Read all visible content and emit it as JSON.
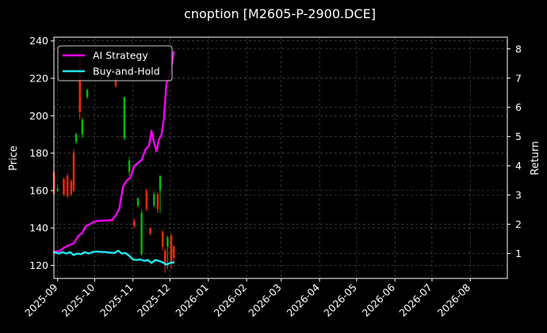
{
  "chart_data": {
    "type": "line",
    "title": "cnoption [M2605-P-2900.DCE]",
    "ylabel_left": "Price",
    "ylabel_right": "Return",
    "xlabel": "",
    "grid": true,
    "legend_placement": "top-left",
    "colors": {
      "background": "#000000",
      "up_candle": "#00c000",
      "down_candle": "#ff2a00",
      "ai_strategy": "#ff00ff",
      "buy_and_hold": "#22e5f0",
      "grid": "#555555",
      "axis": "#ffffff"
    },
    "x_range": [
      "2025-08-29",
      "2026-08-31"
    ],
    "x_ticks": [
      "2025-09",
      "2025-10",
      "2025-11",
      "2025-12",
      "2026-01",
      "2026-02",
      "2026-03",
      "2026-04",
      "2026-05",
      "2026-06",
      "2026-07",
      "2026-08"
    ],
    "x_tick_dates": [
      "2025-09-01",
      "2025-10-01",
      "2025-11-01",
      "2025-12-01",
      "2026-01-01",
      "2026-02-01",
      "2026-03-01",
      "2026-04-01",
      "2026-05-01",
      "2026-06-01",
      "2026-07-01",
      "2026-08-01"
    ],
    "ylim_left": [
      113,
      242
    ],
    "yticks_left": [
      120,
      140,
      160,
      180,
      200,
      220,
      240
    ],
    "ylim_right": [
      0.15,
      8.4
    ],
    "yticks_right": [
      1,
      2,
      3,
      4,
      5,
      6,
      7,
      8
    ],
    "series": [
      {
        "name": "AI Strategy",
        "axis": "right",
        "points": [
          [
            "2025-08-29",
            1.05
          ],
          [
            "2025-09-03",
            1.1
          ],
          [
            "2025-09-06",
            1.2
          ],
          [
            "2025-09-10",
            1.28
          ],
          [
            "2025-09-14",
            1.35
          ],
          [
            "2025-09-18",
            1.62
          ],
          [
            "2025-09-21",
            1.7
          ],
          [
            "2025-09-24",
            1.95
          ],
          [
            "2025-09-27",
            2.0
          ],
          [
            "2025-09-30",
            2.08
          ],
          [
            "2025-10-04",
            2.12
          ],
          [
            "2025-10-08",
            2.13
          ],
          [
            "2025-10-12",
            2.13
          ],
          [
            "2025-10-15",
            2.15
          ],
          [
            "2025-10-18",
            2.3
          ],
          [
            "2025-10-21",
            2.55
          ],
          [
            "2025-10-24",
            3.3
          ],
          [
            "2025-10-27",
            3.5
          ],
          [
            "2025-10-30",
            3.6
          ],
          [
            "2025-11-02",
            4.0
          ],
          [
            "2025-11-05",
            4.1
          ],
          [
            "2025-11-08",
            4.2
          ],
          [
            "2025-11-11",
            4.55
          ],
          [
            "2025-11-14",
            4.7
          ],
          [
            "2025-11-16",
            5.2
          ],
          [
            "2025-11-18",
            4.8
          ],
          [
            "2025-11-20",
            4.5
          ],
          [
            "2025-11-22",
            4.9
          ],
          [
            "2025-11-24",
            5.05
          ],
          [
            "2025-11-26",
            5.6
          ],
          [
            "2025-11-28",
            6.8
          ],
          [
            "2025-11-30",
            7.0
          ],
          [
            "2025-12-02",
            7.35
          ],
          [
            "2025-12-04",
            7.9
          ]
        ]
      },
      {
        "name": "Buy-and-Hold",
        "axis": "right",
        "points": [
          [
            "2025-08-29",
            1.05
          ],
          [
            "2025-09-02",
            1.0
          ],
          [
            "2025-09-05",
            1.05
          ],
          [
            "2025-09-08",
            1.0
          ],
          [
            "2025-09-11",
            1.05
          ],
          [
            "2025-09-14",
            0.95
          ],
          [
            "2025-09-17",
            1.0
          ],
          [
            "2025-09-20",
            0.98
          ],
          [
            "2025-09-23",
            1.05
          ],
          [
            "2025-09-26",
            1.0
          ],
          [
            "2025-09-29",
            1.05
          ],
          [
            "2025-10-02",
            1.07
          ],
          [
            "2025-10-06",
            1.06
          ],
          [
            "2025-10-10",
            1.05
          ],
          [
            "2025-10-14",
            1.03
          ],
          [
            "2025-10-17",
            1.02
          ],
          [
            "2025-10-20",
            1.1
          ],
          [
            "2025-10-23",
            1.0
          ],
          [
            "2025-10-26",
            1.02
          ],
          [
            "2025-10-29",
            0.92
          ],
          [
            "2025-11-01",
            0.8
          ],
          [
            "2025-11-04",
            0.78
          ],
          [
            "2025-11-07",
            0.8
          ],
          [
            "2025-11-10",
            0.75
          ],
          [
            "2025-11-13",
            0.78
          ],
          [
            "2025-11-16",
            0.68
          ],
          [
            "2025-11-19",
            0.78
          ],
          [
            "2025-11-22",
            0.75
          ],
          [
            "2025-11-25",
            0.7
          ],
          [
            "2025-11-28",
            0.62
          ],
          [
            "2025-12-01",
            0.68
          ],
          [
            "2025-12-04",
            0.7
          ]
        ]
      }
    ],
    "candles": [
      {
        "date": "2025-08-29",
        "open": 170,
        "close": 158,
        "high": 174,
        "low": 156
      },
      {
        "date": "2025-09-01",
        "open": 160,
        "close": 161,
        "high": 162,
        "low": 159
      },
      {
        "date": "2025-09-06",
        "open": 166,
        "close": 158,
        "high": 167,
        "low": 157
      },
      {
        "date": "2025-09-09",
        "open": 168,
        "close": 157,
        "high": 169,
        "low": 156
      },
      {
        "date": "2025-09-12",
        "open": 165,
        "close": 158,
        "high": 166,
        "low": 157
      },
      {
        "date": "2025-09-14",
        "open": 180,
        "close": 160,
        "high": 182,
        "low": 159
      },
      {
        "date": "2025-09-16",
        "open": 186,
        "close": 190,
        "high": 191,
        "low": 185
      },
      {
        "date": "2025-09-19",
        "open": 230,
        "close": 202,
        "high": 233,
        "low": 198
      },
      {
        "date": "2025-09-21",
        "open": 190,
        "close": 198,
        "high": 199,
        "low": 188
      },
      {
        "date": "2025-09-25",
        "open": 210,
        "close": 214,
        "high": 214,
        "low": 209
      },
      {
        "date": "2025-10-18",
        "open": 220,
        "close": 216,
        "high": 221,
        "low": 215
      },
      {
        "date": "2025-10-25",
        "open": 188,
        "close": 210,
        "high": 210,
        "low": 187
      },
      {
        "date": "2025-10-29",
        "open": 170,
        "close": 176,
        "high": 178,
        "low": 168
      },
      {
        "date": "2025-11-02",
        "open": 144,
        "close": 141,
        "high": 145,
        "low": 140
      },
      {
        "date": "2025-11-05",
        "open": 152,
        "close": 156,
        "high": 156,
        "low": 151
      },
      {
        "date": "2025-11-08",
        "open": 126,
        "close": 148,
        "high": 150,
        "low": 125
      },
      {
        "date": "2025-11-12",
        "open": 160,
        "close": 150,
        "high": 161,
        "low": 149
      },
      {
        "date": "2025-11-15",
        "open": 140,
        "close": 137,
        "high": 140,
        "low": 136
      },
      {
        "date": "2025-11-18",
        "open": 152,
        "close": 158,
        "high": 159,
        "low": 151
      },
      {
        "date": "2025-11-21",
        "open": 158,
        "close": 150,
        "high": 159,
        "low": 148
      },
      {
        "date": "2025-11-23",
        "open": 160,
        "close": 168,
        "high": 168,
        "low": 148
      },
      {
        "date": "2025-11-25",
        "open": 138,
        "close": 130,
        "high": 139,
        "low": 128
      },
      {
        "date": "2025-11-27",
        "open": 128,
        "close": 120,
        "high": 129,
        "low": 116
      },
      {
        "date": "2025-11-29",
        "open": 130,
        "close": 135,
        "high": 136,
        "low": 118
      },
      {
        "date": "2025-12-02",
        "open": 136,
        "close": 122,
        "high": 137,
        "low": 118
      },
      {
        "date": "2025-12-04",
        "open": 130,
        "close": 124,
        "high": 131,
        "low": 122
      }
    ]
  }
}
